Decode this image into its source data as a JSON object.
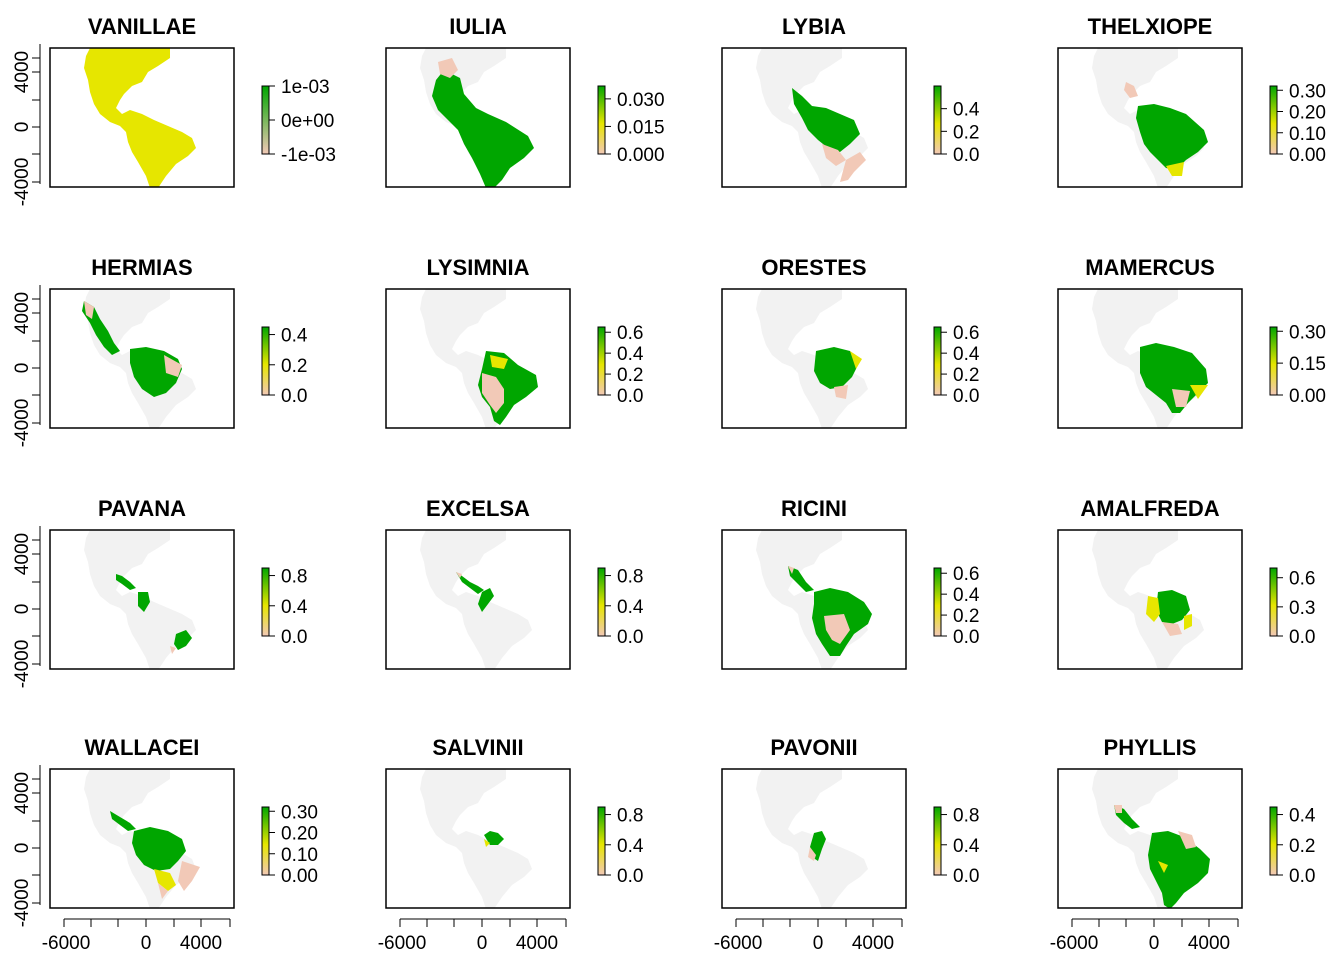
{
  "chart_data": {
    "type": "heatmap",
    "description_axes": {
      "x_ticks": [
        "-6000",
        "0",
        "4000"
      ],
      "y_ticks": [
        "4000",
        "0",
        "-4000"
      ]
    },
    "panels": [
      {
        "title": "VANILLAE",
        "legend_ticks": [
          "1e-03",
          "0e+00",
          "-1e-03"
        ],
        "legend_values": [
          0.001,
          0,
          -0.001
        ],
        "legend_range": [
          -0.001,
          0.001
        ]
      },
      {
        "title": "IULIA",
        "legend_ticks": [
          "0.030",
          "0.015",
          "0.000"
        ],
        "legend_values": [
          0.03,
          0.015,
          0.0
        ],
        "legend_range": [
          0,
          0.037
        ]
      },
      {
        "title": "LYBIA",
        "legend_ticks": [
          "0.4",
          "0.2",
          "0.0"
        ],
        "legend_values": [
          0.4,
          0.2,
          0.0
        ],
        "legend_range": [
          0,
          0.6
        ]
      },
      {
        "title": "THELXIOPE",
        "legend_ticks": [
          "0.30",
          "0.20",
          "0.10",
          "0.00"
        ],
        "legend_values": [
          0.3,
          0.2,
          0.1,
          0.0
        ],
        "legend_range": [
          0,
          0.32
        ]
      },
      {
        "title": "HERMIAS",
        "legend_ticks": [
          "0.4",
          "0.2",
          "0.0"
        ],
        "legend_values": [
          0.4,
          0.2,
          0.0
        ],
        "legend_range": [
          0,
          0.45
        ]
      },
      {
        "title": "LYSIMNIA",
        "legend_ticks": [
          "0.6",
          "0.4",
          "0.2",
          "0.0"
        ],
        "legend_values": [
          0.6,
          0.4,
          0.2,
          0.0
        ],
        "legend_range": [
          0,
          0.65
        ]
      },
      {
        "title": "ORESTES",
        "legend_ticks": [
          "0.6",
          "0.4",
          "0.2",
          "0.0"
        ],
        "legend_values": [
          0.6,
          0.4,
          0.2,
          0.0
        ],
        "legend_range": [
          0,
          0.65
        ]
      },
      {
        "title": "MAMERCUS",
        "legend_ticks": [
          "0.30",
          "0.15",
          "0.00"
        ],
        "legend_values": [
          0.3,
          0.15,
          0.0
        ],
        "legend_range": [
          0,
          0.32
        ]
      },
      {
        "title": "PAVANA",
        "legend_ticks": [
          "0.8",
          "0.4",
          "0.0"
        ],
        "legend_values": [
          0.8,
          0.4,
          0.0
        ],
        "legend_range": [
          0,
          0.9
        ]
      },
      {
        "title": "EXCELSA",
        "legend_ticks": [
          "0.8",
          "0.4",
          "0.0"
        ],
        "legend_values": [
          0.8,
          0.4,
          0.0
        ],
        "legend_range": [
          0,
          0.9
        ]
      },
      {
        "title": "RICINI",
        "legend_ticks": [
          "0.6",
          "0.4",
          "0.2",
          "0.0"
        ],
        "legend_values": [
          0.6,
          0.4,
          0.2,
          0.0
        ],
        "legend_range": [
          0,
          0.65
        ]
      },
      {
        "title": "AMALFREDA",
        "legend_ticks": [
          "0.6",
          "0.3",
          "0.0"
        ],
        "legend_values": [
          0.6,
          0.3,
          0.0
        ],
        "legend_range": [
          0,
          0.7
        ]
      },
      {
        "title": "WALLACEI",
        "legend_ticks": [
          "0.30",
          "0.20",
          "0.10",
          "0.00"
        ],
        "legend_values": [
          0.3,
          0.2,
          0.1,
          0.0
        ],
        "legend_range": [
          0,
          0.32
        ]
      },
      {
        "title": "SALVINII",
        "legend_ticks": [
          "0.8",
          "0.4",
          "0.0"
        ],
        "legend_values": [
          0.8,
          0.4,
          0.0
        ],
        "legend_range": [
          0,
          0.9
        ]
      },
      {
        "title": "PAVONII",
        "legend_ticks": [
          "0.8",
          "0.4",
          "0.0"
        ],
        "legend_values": [
          0.8,
          0.4,
          0.0
        ],
        "legend_range": [
          0,
          0.9
        ]
      },
      {
        "title": "PHYLLIS",
        "legend_ticks": [
          "0.4",
          "0.2",
          "0.0"
        ],
        "legend_values": [
          0.4,
          0.2,
          0.0
        ],
        "legend_range": [
          0,
          0.45
        ]
      }
    ],
    "colors": {
      "high": "#00a600",
      "mid": "#e6e600",
      "low": "#f2c9b7",
      "background_land": "#f2f2f2",
      "uniform": "#e6e600"
    }
  }
}
